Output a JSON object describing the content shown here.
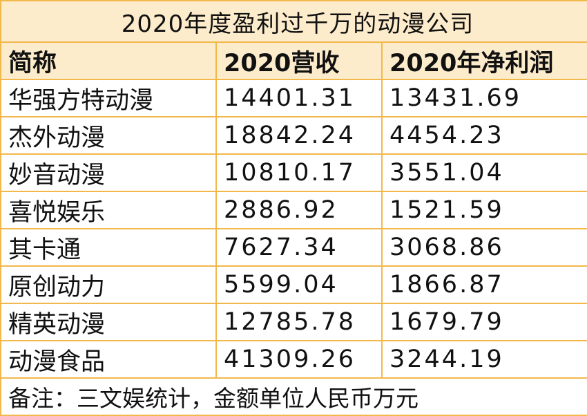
{
  "title": "2020年度盈利过千万的动漫公司",
  "columns": [
    "简称",
    "2020营收",
    "2020年净利润"
  ],
  "rows": [
    [
      "华强方特动漫",
      "14401.31",
      "13431.69"
    ],
    [
      "杰外动漫",
      "18842.24",
      "4454.23"
    ],
    [
      "妙音动漫",
      "10810.17",
      "3551.04"
    ],
    [
      "喜悦娱乐",
      "2886.92",
      "1521.59"
    ],
    [
      "其卡通",
      "7627.34",
      "3068.86"
    ],
    [
      "原创动力",
      "5599.04",
      "1866.87"
    ],
    [
      "精英动漫",
      "12785.78",
      "1679.79"
    ],
    [
      "动漫食品",
      "41309.26",
      "3244.19"
    ]
  ],
  "note": "备注：三文娱统计，金额单位人民币万元",
  "colors": {
    "header_fill": "#fdeccb",
    "border": "#f2b84b"
  }
}
